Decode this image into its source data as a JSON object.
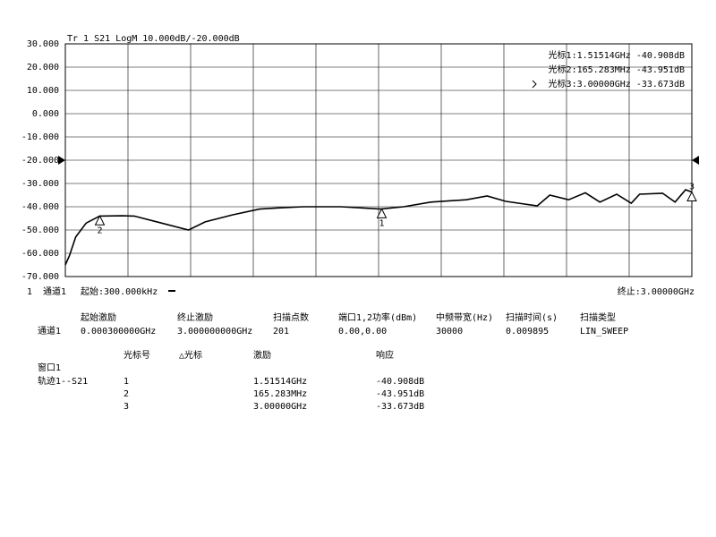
{
  "chart_data": {
    "type": "line",
    "title": "Tr 1  S21 LogM 10.000dB/-20.000dB",
    "marker_readouts": [
      "光标1:1.51514GHz -40.908dB",
      "光标2:165.283MHz -43.951dB",
      "光标3:3.00000GHz -33.673dB"
    ],
    "x": [
      0.0003,
      0.02,
      0.05,
      0.1,
      0.165,
      0.27,
      0.33,
      0.46,
      0.59,
      0.67,
      0.8,
      0.93,
      1.02,
      1.14,
      1.32,
      1.51,
      1.62,
      1.75,
      1.92,
      2.02,
      2.11,
      2.26,
      2.32,
      2.41,
      2.49,
      2.56,
      2.64,
      2.71,
      2.75,
      2.86,
      2.92,
      2.97,
      3.0
    ],
    "values": [
      -65,
      -61,
      -53,
      -47,
      -44,
      -43.9,
      -44,
      -47,
      -50,
      -46.5,
      -43.5,
      -41,
      -40.5,
      -40,
      -40,
      -41,
      -40,
      -38,
      -37,
      -35.4,
      -37.7,
      -39.6,
      -35,
      -37,
      -34,
      -38,
      -34.6,
      -38.5,
      -34.6,
      -34.2,
      -38,
      -32.7,
      -33.7
    ],
    "color": "#000000",
    "xlim": [
      0.0003,
      3
    ],
    "ylim": [
      -70,
      30
    ],
    "yticks": [
      {
        "value": 30,
        "label": "30.000"
      },
      {
        "value": 20,
        "label": "20.000"
      },
      {
        "value": 10,
        "label": "10.000"
      },
      {
        "value": 0,
        "label": "0.000"
      },
      {
        "value": -10,
        "label": "-10.000"
      },
      {
        "value": -20,
        "label": "-20.000"
      },
      {
        "value": -30,
        "label": "-30.000"
      },
      {
        "value": -40,
        "label": "-40.000"
      },
      {
        "value": -50,
        "label": "-50.000"
      },
      {
        "value": -60,
        "label": "-60.000"
      },
      {
        "value": -70,
        "label": "-70.000"
      }
    ],
    "ref_level": -20,
    "grid": true,
    "markers": [
      {
        "label": "1",
        "x": 1.51514,
        "y": -40.908
      },
      {
        "label": "2",
        "x": 0.165283,
        "y": -43.951
      },
      {
        "label": "3",
        "x": 3.0,
        "y": -33.673
      }
    ]
  },
  "status": {
    "window": "1",
    "channel": "通道1",
    "start": "起始:300.000kHz",
    "stop": "终止:3.00000GHz"
  },
  "settings": {
    "headers": [
      "起始激励",
      "终止激励",
      "扫描点数",
      "端口1,2功率(dBm)",
      "中频带宽(Hz)",
      "扫描时间(s)",
      "扫描类型"
    ],
    "row_label": "通道1",
    "row": [
      "0.000300000GHz",
      "3.000000000GHz",
      "201",
      "0.00,0.00",
      "30000",
      "0.009895",
      "LIN_SWEEP"
    ]
  },
  "marker_table": {
    "headers": [
      "光标号",
      "△光标",
      "激励",
      "响应"
    ],
    "window": "窗口1",
    "trace": "轨迹1--S21",
    "rows": [
      [
        "1",
        "1.51514GHz",
        "-40.908dB"
      ],
      [
        "2",
        "165.283MHz",
        "-43.951dB"
      ],
      [
        "3",
        "3.00000GHz",
        "-33.673dB"
      ]
    ]
  }
}
